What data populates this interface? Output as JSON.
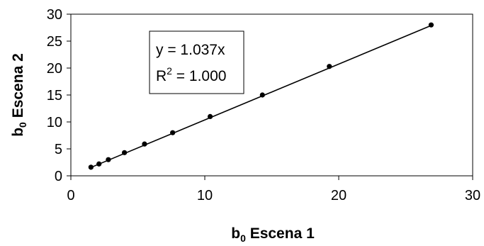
{
  "chart_data": {
    "type": "scatter",
    "title": "",
    "xlabel": {
      "base": "b",
      "sub": "0",
      "rest": " Escena 1"
    },
    "ylabel": {
      "base": "b",
      "sub": "0",
      "rest": " Escena 2"
    },
    "xlim": [
      0,
      30
    ],
    "ylim": [
      0,
      30
    ],
    "xticks": [
      0,
      10,
      20,
      30
    ],
    "yticks": [
      0,
      5,
      10,
      15,
      20,
      25,
      30
    ],
    "grid": false,
    "legend": "none",
    "marker_color": "#000000",
    "series": [
      {
        "x": [
          1.5,
          2.1,
          2.8,
          4.0,
          5.5,
          7.6,
          10.4,
          14.3,
          19.3,
          26.9
        ],
        "y": [
          1.6,
          2.2,
          3.0,
          4.3,
          5.9,
          8.0,
          11.0,
          15.0,
          20.3,
          28.0
        ]
      }
    ],
    "trendline": {
      "slope": 1.037,
      "x_range": [
        1.5,
        26.9
      ]
    },
    "annotation": {
      "line1": "y = 1.037x",
      "line2_prefix": "R",
      "line2_sup": "2",
      "line2_suffix": " = 1.000"
    }
  }
}
